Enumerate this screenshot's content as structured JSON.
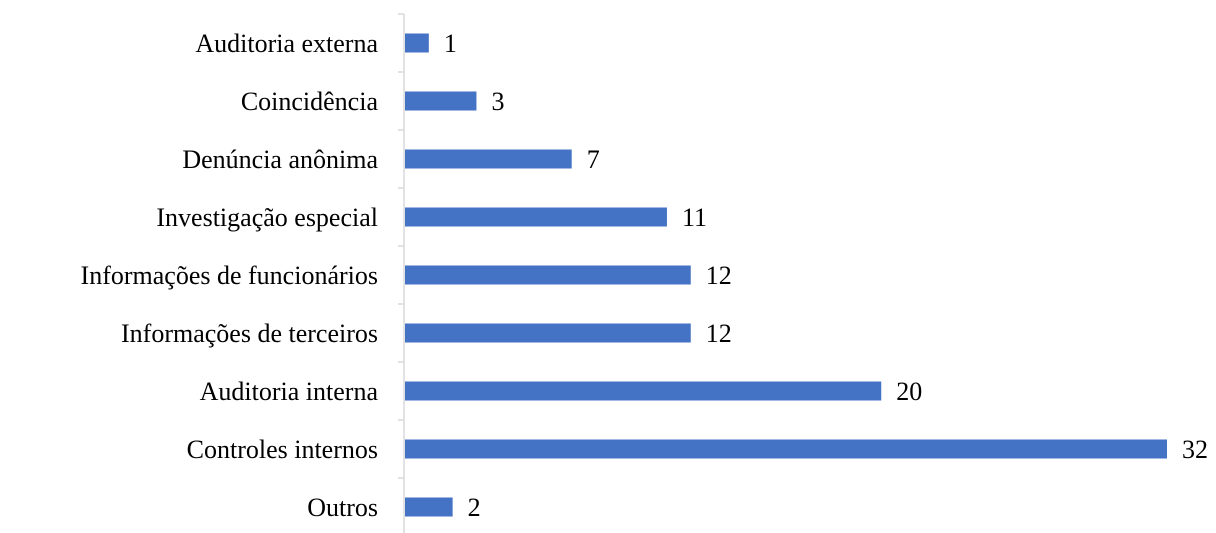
{
  "chart_data": {
    "type": "bar",
    "orientation": "horizontal",
    "categories": [
      "Auditoria externa",
      "Coincidência",
      "Denúncia anônima",
      "Investigação especial",
      "Informações de funcionários",
      "Informações de terceiros",
      "Auditoria interna",
      "Controles internos",
      "Outros"
    ],
    "values": [
      1,
      3,
      7,
      11,
      12,
      12,
      20,
      32,
      2
    ],
    "title": "",
    "xlabel": "",
    "ylabel": "",
    "xlim": [
      0,
      32
    ],
    "grid": false,
    "legend": "none",
    "bar_color": "#4472c4",
    "data_labels": true
  }
}
